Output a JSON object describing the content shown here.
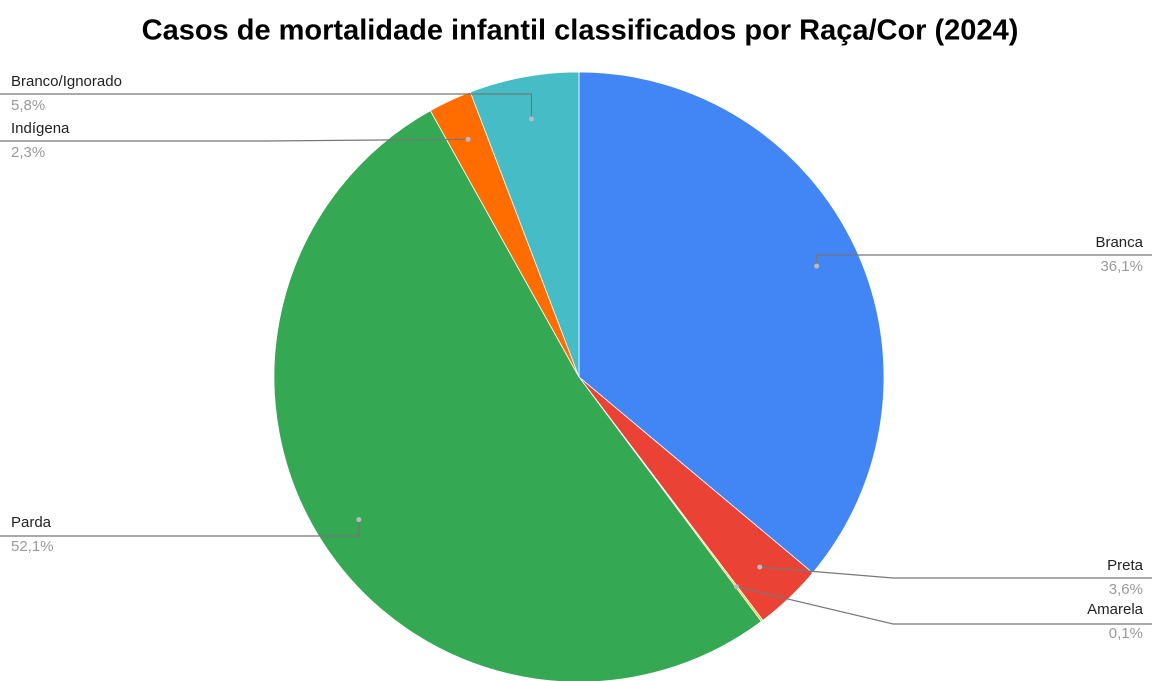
{
  "chart_data": {
    "type": "pie",
    "title": "Casos de mortalidade infantil classificados por Raça/Cor (2024)",
    "categories": [
      "Branca",
      "Preta",
      "Amarela",
      "Parda",
      "Indígena",
      "Branco/Ignorado"
    ],
    "values": [
      36.1,
      3.6,
      0.1,
      52.1,
      2.3,
      5.8
    ],
    "value_labels": [
      "36,1%",
      "3,6%",
      "0,1%",
      "52,1%",
      "2,3%",
      "5,8%"
    ],
    "colors": [
      "#4285f4",
      "#ea4335",
      "#fbbc04",
      "#34a853",
      "#ff6d01",
      "#46bdc6"
    ]
  }
}
